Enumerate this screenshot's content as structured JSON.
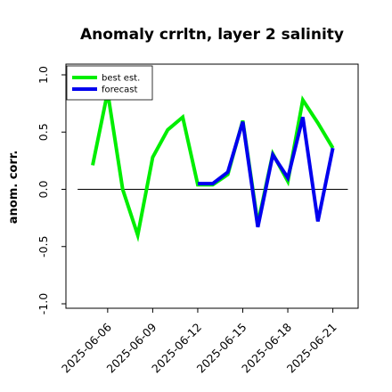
{
  "chart_data": {
    "type": "line",
    "title": "Anomaly crrltn, layer 2 salinity",
    "xlabel": "",
    "ylabel": "anom. corr.",
    "x": [
      "2025-06-05",
      "2025-06-06",
      "2025-06-07",
      "2025-06-08",
      "2025-06-09",
      "2025-06-10",
      "2025-06-11",
      "2025-06-12",
      "2025-06-13",
      "2025-06-14",
      "2025-06-15",
      "2025-06-16",
      "2025-06-17",
      "2025-06-18",
      "2025-06-19",
      "2025-06-20",
      "2025-06-21"
    ],
    "x_ticks": [
      "2025-06-06",
      "2025-06-09",
      "2025-06-12",
      "2025-06-15",
      "2025-06-18",
      "2025-06-21"
    ],
    "x_tick_colors": [
      "#000000",
      "#000000",
      "#228B22",
      "#000000",
      "#000000",
      "#000000"
    ],
    "y_ticks": [
      "-1.0",
      "-0.5",
      "0.0",
      "0.5",
      "1.0"
    ],
    "ylim": [
      -1.0,
      1.0
    ],
    "reference_line": 0.0,
    "series": [
      {
        "name": "best est.",
        "color": "#00ee00",
        "values": [
          0.21,
          0.85,
          0.0,
          -0.4,
          0.28,
          0.52,
          0.63,
          0.04,
          0.04,
          0.13,
          0.6,
          -0.3,
          0.31,
          0.07,
          0.78,
          0.58,
          0.36
        ]
      },
      {
        "name": "forecast",
        "color": "#0000ee",
        "values": [
          null,
          null,
          null,
          null,
          null,
          null,
          null,
          0.05,
          0.05,
          0.15,
          0.59,
          -0.33,
          0.3,
          0.1,
          0.63,
          -0.28,
          0.36
        ]
      }
    ],
    "legend": "top-left",
    "grid": false
  }
}
